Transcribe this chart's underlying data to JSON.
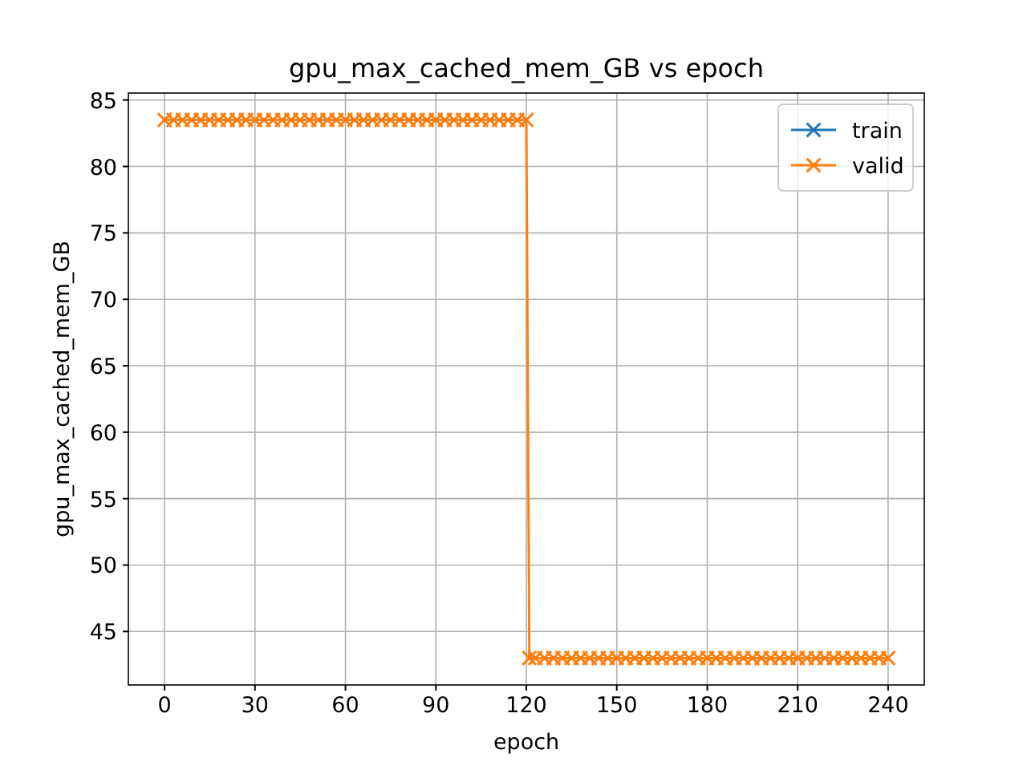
{
  "chart_data": {
    "type": "line",
    "title": "gpu_max_cached_mem_GB vs epoch",
    "xlabel": "epoch",
    "ylabel": "gpu_max_cached_mem_GB",
    "x": [
      0,
      3,
      6,
      9,
      12,
      15,
      18,
      21,
      24,
      27,
      30,
      33,
      36,
      39,
      42,
      45,
      48,
      51,
      54,
      57,
      60,
      63,
      66,
      69,
      72,
      75,
      78,
      81,
      84,
      87,
      90,
      93,
      96,
      99,
      102,
      105,
      108,
      111,
      114,
      117,
      120,
      121,
      123,
      126,
      129,
      132,
      135,
      138,
      141,
      144,
      147,
      150,
      153,
      156,
      159,
      162,
      165,
      168,
      171,
      174,
      177,
      180,
      183,
      186,
      189,
      192,
      195,
      198,
      201,
      204,
      207,
      210,
      213,
      216,
      219,
      222,
      225,
      228,
      231,
      234,
      237,
      240
    ],
    "series": [
      {
        "name": "train",
        "color": "#1f77b4",
        "values": [
          null,
          null,
          null,
          null,
          null,
          null,
          null,
          null,
          null,
          null,
          null,
          null,
          null,
          null,
          null,
          null,
          null,
          null,
          null,
          null,
          null,
          null,
          null,
          null,
          null,
          null,
          null,
          null,
          null,
          null,
          null,
          null,
          null,
          null,
          null,
          null,
          null,
          null,
          null,
          null,
          null,
          null,
          null,
          null,
          null,
          null,
          null,
          null,
          null,
          null,
          null,
          null,
          null,
          null,
          null,
          null,
          null,
          null,
          null,
          null,
          null,
          null,
          null,
          null,
          null,
          null,
          null,
          null,
          null,
          null,
          null,
          null,
          null,
          null,
          null,
          null,
          null,
          null,
          null,
          null,
          null,
          null
        ]
      },
      {
        "name": "valid",
        "color": "#ff7f0e",
        "values": [
          83.5,
          83.5,
          83.5,
          83.5,
          83.5,
          83.5,
          83.5,
          83.5,
          83.5,
          83.5,
          83.5,
          83.5,
          83.5,
          83.5,
          83.5,
          83.5,
          83.5,
          83.5,
          83.5,
          83.5,
          83.5,
          83.5,
          83.5,
          83.5,
          83.5,
          83.5,
          83.5,
          83.5,
          83.5,
          83.5,
          83.5,
          83.5,
          83.5,
          83.5,
          83.5,
          83.5,
          83.5,
          83.5,
          83.5,
          83.5,
          83.5,
          43,
          43,
          43,
          43,
          43,
          43,
          43,
          43,
          43,
          43,
          43,
          43,
          43,
          43,
          43,
          43,
          43,
          43,
          43,
          43,
          43,
          43,
          43,
          43,
          43,
          43,
          43,
          43,
          43,
          43,
          43,
          43,
          43,
          43,
          43,
          43,
          43,
          43,
          43,
          43,
          43
        ]
      }
    ],
    "xlim": [
      -12,
      252
    ],
    "ylim": [
      40.975,
      85.525
    ],
    "xticks": [
      0,
      30,
      60,
      90,
      120,
      150,
      180,
      210,
      240
    ],
    "yticks": [
      45,
      50,
      55,
      60,
      65,
      70,
      75,
      80,
      85
    ],
    "grid": true,
    "legend": "top right",
    "marker": "cross",
    "line_style": "solid"
  }
}
